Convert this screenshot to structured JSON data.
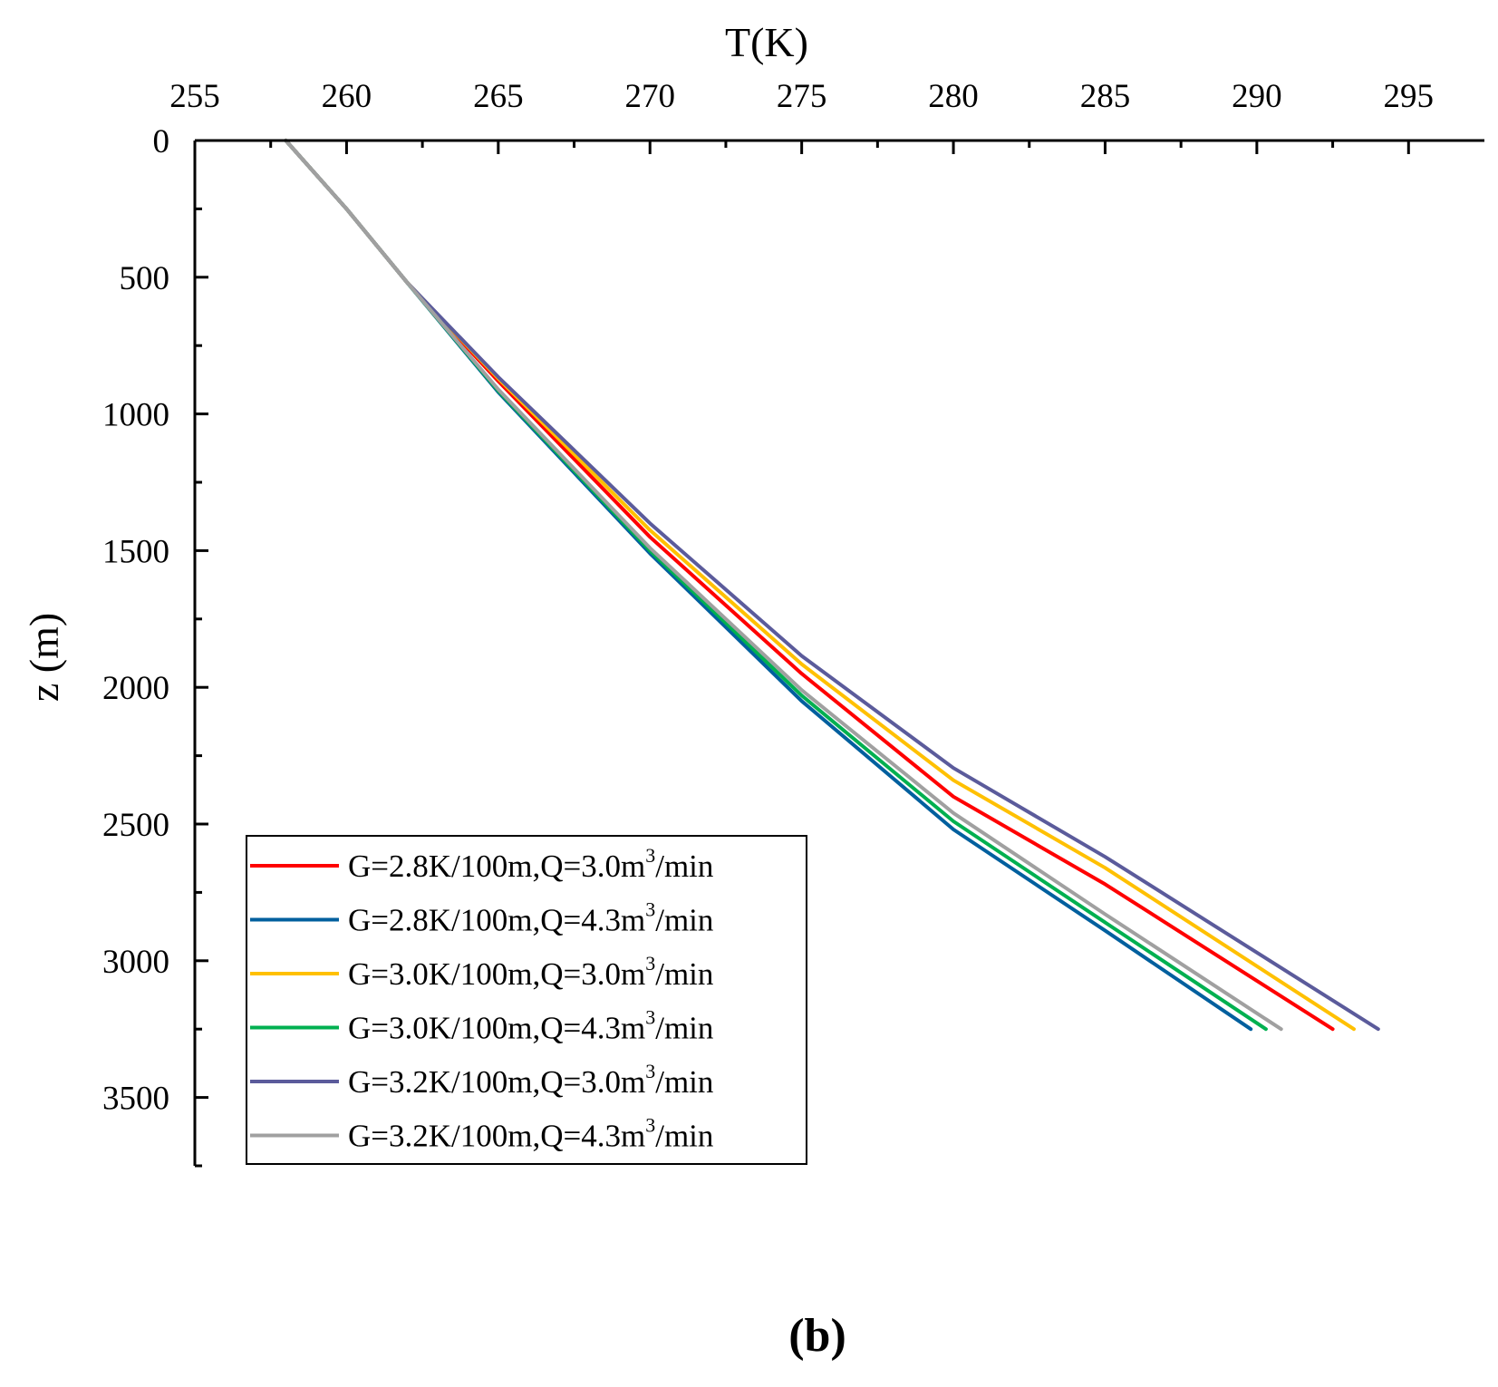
{
  "chart_data": {
    "type": "line",
    "title": "",
    "xlabel": "T(K)",
    "ylabel": "z (m)",
    "xlim": [
      255,
      297.5
    ],
    "ylim": [
      0,
      3750
    ],
    "x_axis_position": "top",
    "y_axis_inverted": true,
    "xticks": [
      "255",
      "260",
      "265",
      "270",
      "275",
      "280",
      "285",
      "290",
      "295"
    ],
    "yticks": [
      "0",
      "500",
      "1000",
      "1500",
      "2000",
      "2500",
      "3000",
      "3500"
    ],
    "grid": false,
    "legend_position": "bottom-left",
    "caption": "(b)",
    "series": [
      {
        "name": "G=2.8K/100m,Q=3.0m3/min",
        "label_main": "G=2.8K/100m,Q=3.0m",
        "label_sup": "3",
        "label_tail": "/min",
        "color": "#ff0000",
        "points": [
          [
            258,
            0
          ],
          [
            260,
            250
          ],
          [
            262,
            520
          ],
          [
            265,
            880
          ],
          [
            270,
            1450
          ],
          [
            275,
            1950
          ],
          [
            280,
            2400
          ],
          [
            285,
            2720
          ],
          [
            292.5,
            3250
          ]
        ]
      },
      {
        "name": "G=2.8K/100m,Q=4.3m3/min",
        "label_main": "G=2.8K/100m,Q=4.3m",
        "label_sup": "3",
        "label_tail": "/min",
        "color": "#005f9e",
        "points": [
          [
            258,
            0
          ],
          [
            260,
            250
          ],
          [
            262,
            520
          ],
          [
            265,
            920
          ],
          [
            270,
            1510
          ],
          [
            275,
            2050
          ],
          [
            280,
            2520
          ],
          [
            285,
            2890
          ],
          [
            289.8,
            3250
          ]
        ]
      },
      {
        "name": "G=3.0K/100m,Q=3.0m3/min",
        "label_main": "G=3.0K/100m,Q=3.0m",
        "label_sup": "3",
        "label_tail": "/min",
        "color": "#ffc000",
        "points": [
          [
            258,
            0
          ],
          [
            260,
            250
          ],
          [
            262,
            520
          ],
          [
            265,
            870
          ],
          [
            270,
            1425
          ],
          [
            275,
            1915
          ],
          [
            280,
            2340
          ],
          [
            285,
            2660
          ],
          [
            293.2,
            3250
          ]
        ]
      },
      {
        "name": "G=3.0K/100m,Q=4.3m3/min",
        "label_main": "G=3.0K/100m,Q=4.3m",
        "label_sup": "3",
        "label_tail": "/min",
        "color": "#00b050",
        "points": [
          [
            258,
            0
          ],
          [
            260,
            250
          ],
          [
            262,
            520
          ],
          [
            265,
            915
          ],
          [
            270,
            1500
          ],
          [
            275,
            2030
          ],
          [
            280,
            2490
          ],
          [
            285,
            2860
          ],
          [
            290.3,
            3250
          ]
        ]
      },
      {
        "name": "G=3.2K/100m,Q=3.0m3/min",
        "label_main": "G=3.2K/100m,Q=3.0m",
        "label_sup": "3",
        "label_tail": "/min",
        "color": "#5b5b9b",
        "points": [
          [
            258,
            0
          ],
          [
            260,
            250
          ],
          [
            262,
            520
          ],
          [
            265,
            865
          ],
          [
            270,
            1400
          ],
          [
            275,
            1885
          ],
          [
            280,
            2295
          ],
          [
            285,
            2620
          ],
          [
            294,
            3250
          ]
        ]
      },
      {
        "name": "G=3.2K/100m,Q=4.3m3/min",
        "label_main": "G=3.2K/100m,Q=4.3m",
        "label_sup": "3",
        "label_tail": "/min",
        "color": "#a0a0a0",
        "points": [
          [
            258,
            0
          ],
          [
            260,
            250
          ],
          [
            262,
            520
          ],
          [
            265,
            910
          ],
          [
            270,
            1490
          ],
          [
            275,
            2010
          ],
          [
            280,
            2460
          ],
          [
            285,
            2830
          ],
          [
            290.8,
            3250
          ]
        ]
      }
    ]
  }
}
